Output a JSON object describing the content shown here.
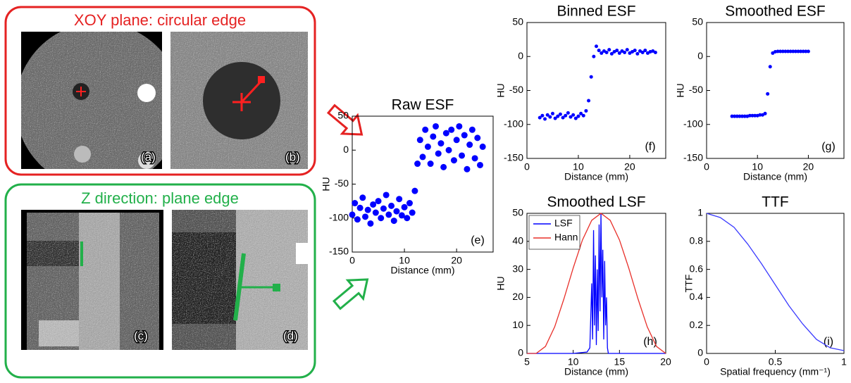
{
  "panels": {
    "xoy": {
      "title": "XOY plane: circular edge",
      "labels": [
        "(a)",
        "(b)"
      ]
    },
    "z": {
      "title": "Z direction: plane edge",
      "labels": [
        "(c)",
        "(d)"
      ]
    }
  },
  "chart_data": [
    {
      "type": "scatter",
      "title": "Raw ESF",
      "x_label": "Distance (mm)",
      "y_label": "HU",
      "annotation": "(e)",
      "color": "#0000ff",
      "xlim": [
        0,
        27
      ],
      "xticks": [
        0,
        10,
        20
      ],
      "ylim": [
        -150,
        50
      ],
      "yticks": [
        -150,
        -100,
        -50,
        0,
        50
      ],
      "x": [
        0,
        0.5,
        1,
        1.5,
        2,
        2.5,
        3,
        3.5,
        4,
        4.5,
        5,
        5.5,
        6,
        6.5,
        7,
        7.5,
        8,
        8.5,
        9,
        9.5,
        10,
        10.5,
        11,
        11.5,
        12,
        12.5,
        13,
        13.5,
        14,
        14.5,
        15,
        15.5,
        16,
        16.5,
        17,
        17.5,
        18,
        18.5,
        19,
        19.5,
        20,
        20.5,
        21,
        21.5,
        22,
        22.5,
        23,
        23.5,
        24,
        24.5,
        25
      ],
      "values": [
        -95,
        -78,
        -102,
        -85,
        -70,
        -98,
        -88,
        -108,
        -80,
        -92,
        -75,
        -100,
        -86,
        -66,
        -95,
        -82,
        -104,
        -90,
        -72,
        -96,
        -84,
        -100,
        -78,
        -92,
        -60,
        -20,
        15,
        -10,
        30,
        5,
        -20,
        20,
        35,
        -5,
        10,
        -25,
        25,
        0,
        30,
        -15,
        15,
        35,
        -8,
        22,
        -28,
        8,
        30,
        -12,
        18,
        -22,
        5
      ]
    },
    {
      "type": "scatter",
      "title": "Binned ESF",
      "x_label": "Distance (mm)",
      "y_label": "HU",
      "annotation": "(f)",
      "color": "#0000ff",
      "xlim": [
        0,
        27
      ],
      "xticks": [
        0,
        10,
        20
      ],
      "ylim": [
        -150,
        50
      ],
      "yticks": [
        -150,
        -100,
        -50,
        0,
        50
      ],
      "x": [
        2.5,
        3,
        3.5,
        4,
        4.5,
        5,
        5.5,
        6,
        6.5,
        7,
        7.5,
        8,
        8.5,
        9,
        9.5,
        10,
        10.5,
        11,
        11.5,
        12,
        12.5,
        13,
        13.5,
        14,
        14.5,
        15,
        15.5,
        16,
        16.5,
        17,
        17.5,
        18,
        18.5,
        19,
        19.5,
        20,
        20.5,
        21,
        21.5,
        22,
        22.5,
        23,
        23.5,
        24,
        24.5,
        25
      ],
      "values": [
        -90,
        -87,
        -92,
        -86,
        -89,
        -84,
        -91,
        -88,
        -85,
        -90,
        -87,
        -83,
        -89,
        -86,
        -91,
        -88,
        -84,
        -87,
        -80,
        -65,
        -30,
        0,
        15,
        9,
        5,
        8,
        6,
        10,
        4,
        7,
        9,
        5,
        8,
        6,
        10,
        5,
        7,
        9,
        4,
        8,
        6,
        9,
        5,
        7,
        8,
        6
      ]
    },
    {
      "type": "scatter",
      "title": "Smoothed ESF",
      "x_label": "Distance (mm)",
      "y_label": "HU",
      "annotation": "(g)",
      "color": "#0000ff",
      "xlim": [
        0,
        27
      ],
      "xticks": [
        0,
        10,
        20
      ],
      "ylim": [
        -150,
        50
      ],
      "yticks": [
        -150,
        -100,
        -50,
        0,
        50
      ],
      "x": [
        5,
        5.5,
        6,
        6.5,
        7,
        7.5,
        8,
        8.5,
        9,
        9.5,
        10,
        10.5,
        11,
        11.5,
        12,
        12.5,
        13,
        13.5,
        14,
        14.5,
        15,
        15.5,
        16,
        16.5,
        17,
        17.5,
        18,
        18.5,
        19,
        19.5,
        20
      ],
      "values": [
        -88,
        -88,
        -88,
        -88,
        -88,
        -88,
        -88,
        -87,
        -87,
        -87,
        -87,
        -86,
        -86,
        -84,
        -55,
        -15,
        5,
        7,
        7.5,
        7.5,
        7.5,
        7.5,
        7.5,
        7.5,
        7.5,
        7.5,
        7.5,
        7.5,
        7.5,
        7.5,
        7.5
      ]
    },
    {
      "type": "line",
      "title": "Smoothed LSF",
      "x_label": "Distance (mm)",
      "y_label": "HU",
      "annotation": "(h)",
      "legend": "upper left",
      "xlim": [
        5,
        20
      ],
      "xticks": [
        5,
        10,
        15,
        20
      ],
      "ylim": [
        0,
        50
      ],
      "yticks": [
        0,
        10,
        20,
        30,
        40,
        50
      ],
      "series": [
        {
          "name": "LSF",
          "color": "#0000ff",
          "x": [
            5,
            10,
            11.5,
            11.8,
            12,
            12.1,
            12.2,
            12.3,
            12.4,
            12.5,
            12.6,
            12.7,
            12.8,
            12.9,
            13,
            13.1,
            13.2,
            13.3,
            13.4,
            13.5,
            13.6,
            13.7,
            13.8,
            14,
            20
          ],
          "values": [
            0,
            0,
            0.5,
            2,
            25,
            5,
            44,
            10,
            35,
            3,
            30,
            8,
            46,
            15,
            50,
            20,
            37,
            5,
            33,
            10,
            20,
            2,
            0,
            0,
            0
          ]
        },
        {
          "name": "Hann",
          "color": "#e8302a",
          "x": [
            5,
            6,
            7,
            8,
            9,
            10,
            11,
            12,
            13,
            14,
            15,
            16,
            17,
            18,
            19,
            20
          ],
          "values": [
            0,
            0,
            2.5,
            9.5,
            19.5,
            30.5,
            40.5,
            47.5,
            50,
            47.5,
            40.5,
            30.5,
            19.5,
            9.5,
            2.5,
            0
          ]
        }
      ]
    },
    {
      "type": "line",
      "title": "TTF",
      "x_label": "Spatial frequency (mm⁻¹)",
      "y_label": "TTF",
      "annotation": "(i)",
      "xlim": [
        0,
        1
      ],
      "xticks": [
        0,
        0.5,
        1
      ],
      "ylim": [
        0,
        1
      ],
      "yticks": [
        0,
        0.2,
        0.4,
        0.6,
        0.8,
        1
      ],
      "series": [
        {
          "name": "TTF",
          "color": "#3a3aff",
          "x": [
            0,
            0.1,
            0.2,
            0.3,
            0.4,
            0.5,
            0.6,
            0.7,
            0.8,
            0.9,
            1
          ],
          "values": [
            1,
            0.97,
            0.9,
            0.78,
            0.64,
            0.49,
            0.34,
            0.21,
            0.1,
            0.04,
            0.02
          ]
        }
      ]
    }
  ]
}
